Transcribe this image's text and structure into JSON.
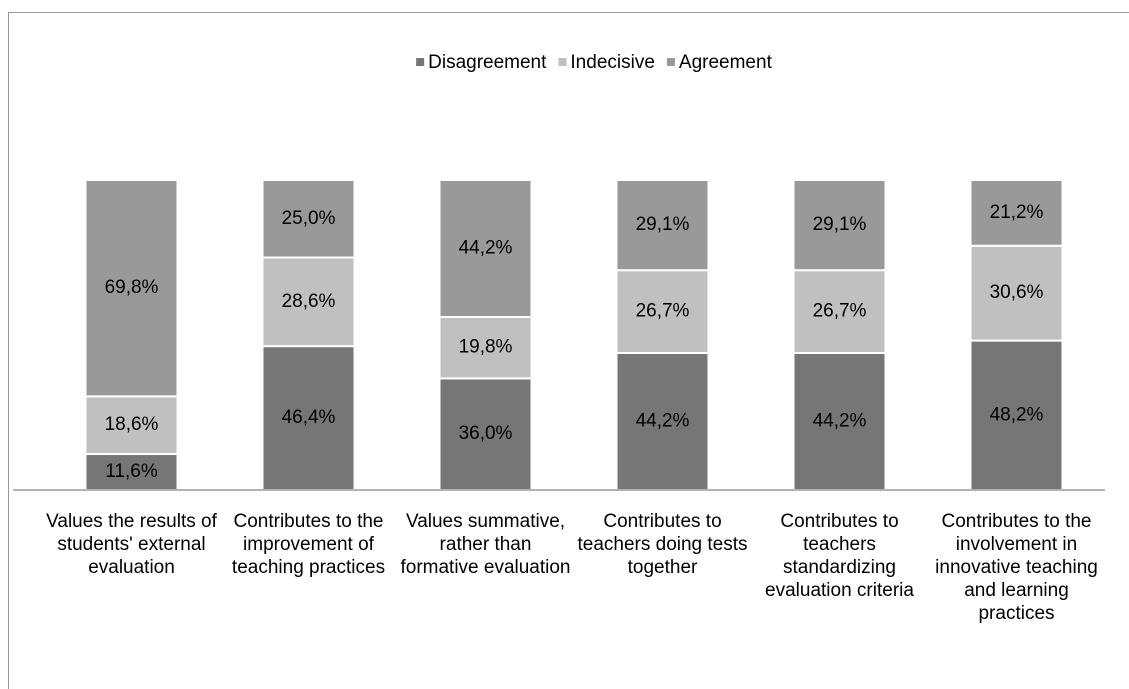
{
  "chart_data": {
    "type": "stacked_bar",
    "categories": [
      "Values the results of students' external evaluation",
      "Contributes to the improvement of teaching practices",
      "Values summative, rather than formative evaluation",
      "Contributes to teachers doing tests together",
      "Contributes to teachers standardizing evaluation criteria",
      "Contributes to the involvement in innovative teaching and learning practices"
    ],
    "series": [
      {
        "name": "Disagreement",
        "color": "#767676",
        "values": [
          11.6,
          46.4,
          36.0,
          44.2,
          44.2,
          48.2
        ],
        "value_labels": [
          "11,6%",
          "46,4%",
          "36,0%",
          "44,2%",
          "44,2%",
          "48,2%"
        ]
      },
      {
        "name": "Indecisive",
        "color": "#c0c0c0",
        "values": [
          18.6,
          28.6,
          19.8,
          26.7,
          26.7,
          30.6
        ],
        "value_labels": [
          "18,6%",
          "28,6%",
          "19,8%",
          "26,7%",
          "26,7%",
          "30,6%"
        ]
      },
      {
        "name": "Agreement",
        "color": "#999999",
        "values": [
          69.8,
          25.0,
          44.2,
          29.1,
          29.1,
          21.2
        ],
        "value_labels": [
          "69,8%",
          "25,0%",
          "44,2%",
          "29,1%",
          "29,1%",
          "21,2%"
        ]
      }
    ],
    "ylim": [
      0,
      100
    ],
    "legend": "top"
  }
}
